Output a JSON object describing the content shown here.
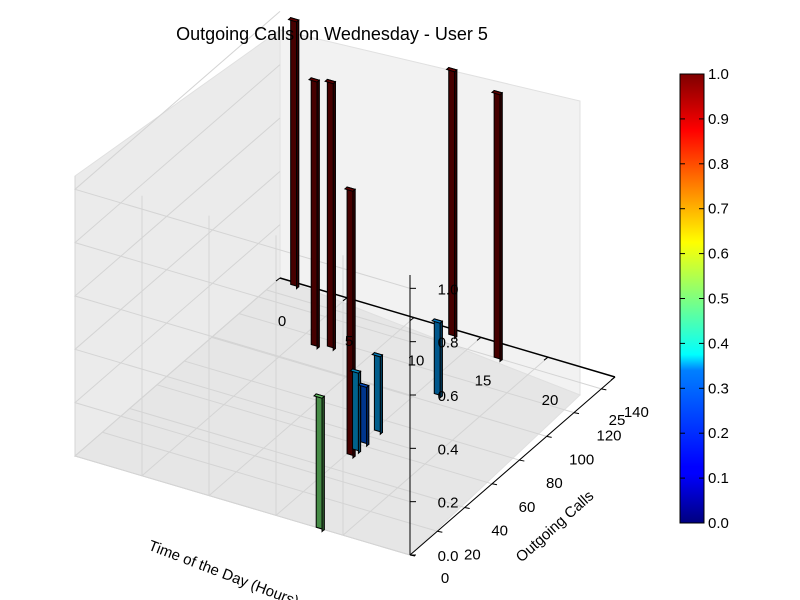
{
  "chart_data": {
    "type": "bar3d",
    "title": "Outgoing Calls on Wednesday - User 5",
    "xlabel": "Time of the Day (Hours)",
    "ylabel": "Outgoing Calls",
    "zlabel": "",
    "xlim": [
      0,
      25
    ],
    "ylim": [
      0,
      150
    ],
    "zlim": [
      0,
      1.05
    ],
    "x_ticks": [
      "0",
      "5",
      "10",
      "15",
      "20",
      "25"
    ],
    "y_ticks": [
      "0",
      "20",
      "40",
      "60",
      "80",
      "100",
      "120",
      "140"
    ],
    "z_ticks": [
      "0.0",
      "0.2",
      "0.4",
      "0.6",
      "0.8",
      "1.0"
    ],
    "bars": [
      {
        "hour": 1,
        "calls": 148,
        "value": 1.0
      },
      {
        "hour": 6,
        "calls": 114,
        "value": 1.0
      },
      {
        "hour": 7,
        "calls": 116,
        "value": 1.0
      },
      {
        "hour": 13,
        "calls": 146,
        "value": 1.0
      },
      {
        "hour": 15,
        "calls": 56,
        "value": 0.3
      },
      {
        "hour": 15,
        "calls": 62,
        "value": 0.22
      },
      {
        "hour": 15,
        "calls": 72,
        "value": 0.29
      },
      {
        "hour": 15,
        "calls": 52,
        "value": 1.0
      },
      {
        "hour": 16,
        "calls": 106,
        "value": 0.28
      },
      {
        "hour": 17,
        "calls": 140,
        "value": 1.0
      },
      {
        "hour": 18,
        "calls": 0,
        "value": 0.5
      }
    ],
    "colorbar": {
      "colormap": "jet",
      "min": 0.0,
      "max": 1.0,
      "ticks": [
        "0.0",
        "0.1",
        "0.2",
        "0.3",
        "0.4",
        "0.5",
        "0.6",
        "0.7",
        "0.8",
        "0.9",
        "1.0"
      ]
    }
  }
}
